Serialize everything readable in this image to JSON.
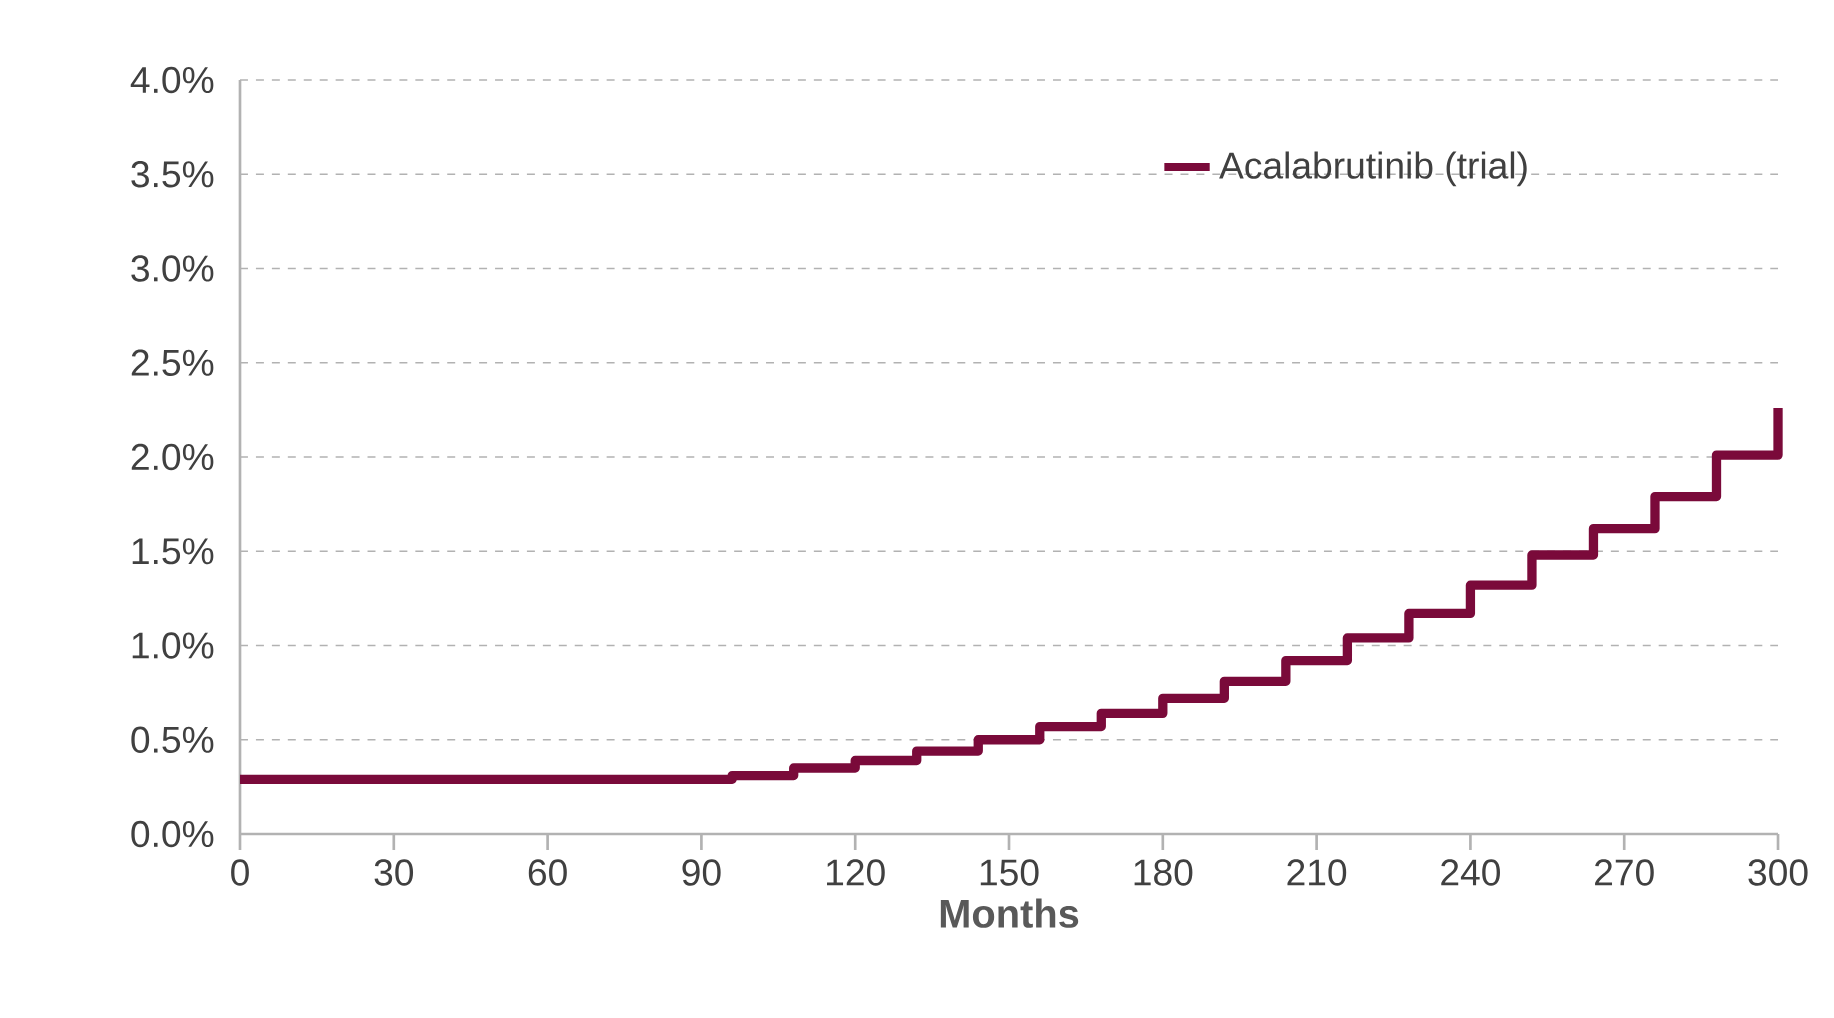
{
  "chart_data": {
    "type": "step",
    "xlabel": "Months",
    "x": [
      0,
      96,
      108,
      120,
      132,
      144,
      156,
      168,
      180,
      192,
      204,
      216,
      228,
      240,
      252,
      264,
      276,
      288,
      300
    ],
    "series": [
      {
        "name": "Acalabrutinib (trial)",
        "color": "#7a0a3a",
        "values": [
          0.29,
          0.31,
          0.35,
          0.39,
          0.44,
          0.5,
          0.57,
          0.64,
          0.72,
          0.81,
          0.92,
          1.04,
          1.17,
          1.32,
          1.48,
          1.62,
          1.79,
          2.01,
          2.26
        ]
      }
    ],
    "xlim": [
      0,
      300
    ],
    "xticks": [
      0,
      30,
      60,
      90,
      120,
      150,
      180,
      210,
      240,
      270,
      300
    ],
    "ylim": [
      0,
      4.0
    ],
    "yticks": [
      {
        "value": 0,
        "label": "0.0%"
      },
      {
        "value": 0.5,
        "label": "0.5%"
      },
      {
        "value": 1.0,
        "label": "1.0%"
      },
      {
        "value": 1.5,
        "label": "1.5%"
      },
      {
        "value": 2.0,
        "label": "2.0%"
      },
      {
        "value": 2.5,
        "label": "2.5%"
      },
      {
        "value": 3.0,
        "label": "3.0%"
      },
      {
        "value": 3.5,
        "label": "3.5%"
      },
      {
        "value": 4.0,
        "label": "4.0%"
      }
    ],
    "grid": "y",
    "legend": "top right",
    "marker": "none",
    "line_style": "solid"
  }
}
